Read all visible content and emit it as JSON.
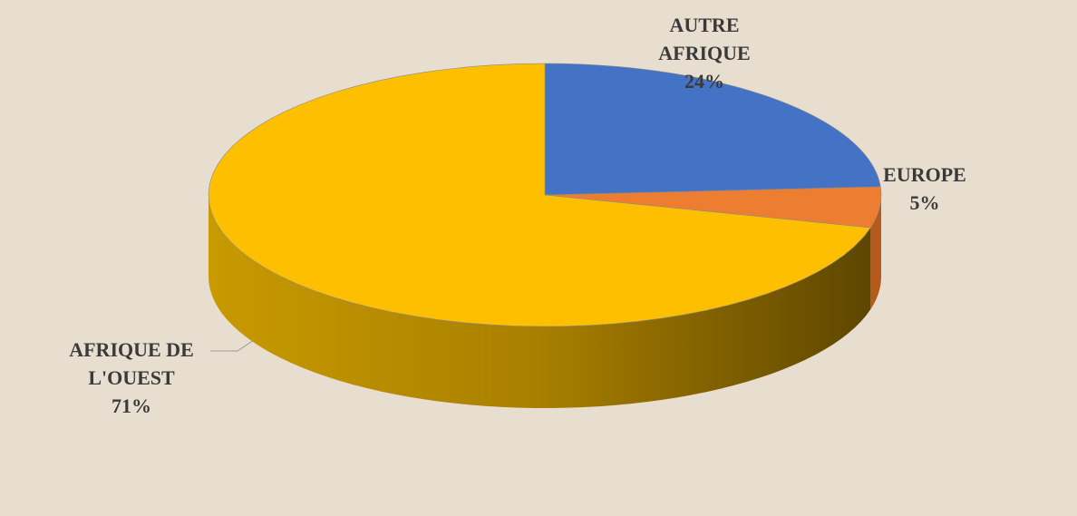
{
  "chart_data": {
    "type": "pie",
    "categories": [
      "AUTRE AFRIQUE",
      "EUROPE",
      "AFRIQUE DE L'OUEST"
    ],
    "values": [
      24,
      5,
      71
    ],
    "value_labels": [
      "24%",
      "5%",
      "71%"
    ],
    "colors": [
      "#4472c4",
      "#ed7d31",
      "#fdbf00"
    ],
    "side_colors": [
      "#2f5597",
      "#b55a1c",
      "#a07800"
    ],
    "start_angle": 0,
    "direction": "clockwise",
    "three_d": true
  }
}
